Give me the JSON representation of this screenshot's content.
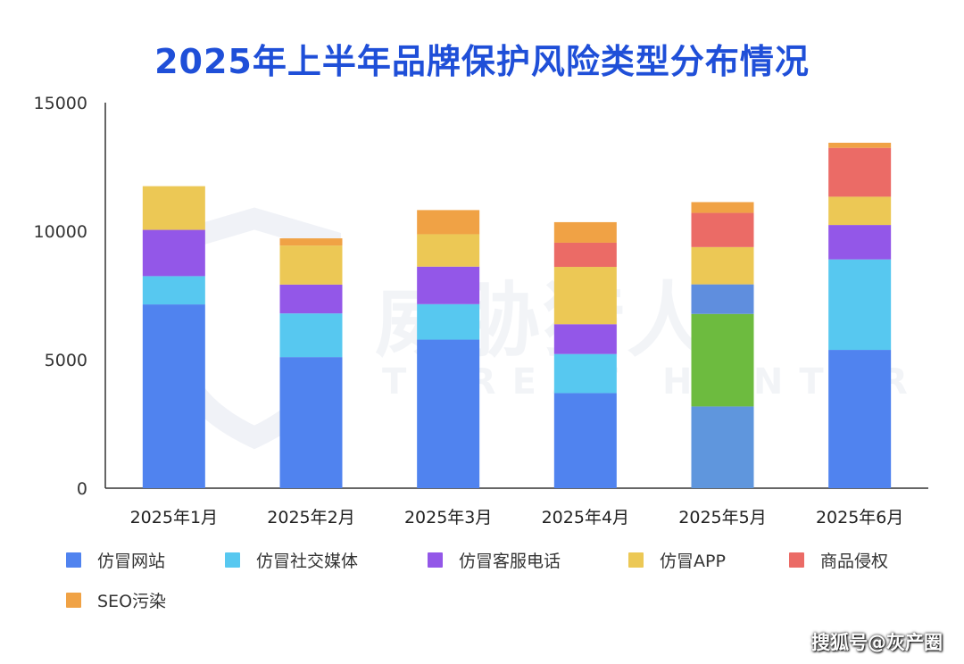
{
  "title": "2025年上半年品牌保护风险类型分布情况",
  "watermark": "搜狐号@灰产圈",
  "chart_data": {
    "type": "bar",
    "stacked": true,
    "categories": [
      "2025年1月",
      "2025年2月",
      "2025年3月",
      "2025年4月",
      "2025年5月",
      "2025年6月"
    ],
    "ylim": [
      0,
      15000
    ],
    "yticks": [
      0,
      5000,
      10000,
      15000
    ],
    "grid": false,
    "legend_position": "bottom",
    "series": [
      {
        "name": "仿冒网站",
        "color": "#5083ef",
        "values": [
          7150,
          5100,
          5780,
          3700,
          3180,
          5380
        ]
      },
      {
        "name": "仿冒社交媒体",
        "color": "#57c8f0",
        "values": [
          1100,
          1700,
          1380,
          1520,
          0,
          3520
        ]
      },
      {
        "name": "仿冒客服电话",
        "color": "#9357e8",
        "values": [
          1800,
          1120,
          1460,
          1160,
          0,
          1340
        ]
      },
      {
        "name": "仿冒APP",
        "color": "#ecc855",
        "values": [
          1700,
          1520,
          1260,
          2230,
          1450,
          1100
        ]
      },
      {
        "name": "商品侵权",
        "color": "#eb6b66",
        "values": [
          0,
          0,
          0,
          940,
          1330,
          1900
        ]
      },
      {
        "name": "SEO污染",
        "color": "#f0a245",
        "values": [
          0,
          280,
          940,
          800,
          420,
          200
        ]
      }
    ],
    "extra_segments": [
      {
        "category": "2025年5月",
        "segments": [
          {
            "color": "#5f96dd",
            "value": 3180
          },
          {
            "color": "#6dbb3f",
            "value": 3600
          },
          {
            "color": "#5f8ede",
            "value": 1150
          }
        ]
      }
    ]
  },
  "logo_watermark": {
    "name": "威胁猎人",
    "subtitle": "THREAT HUNTER"
  }
}
